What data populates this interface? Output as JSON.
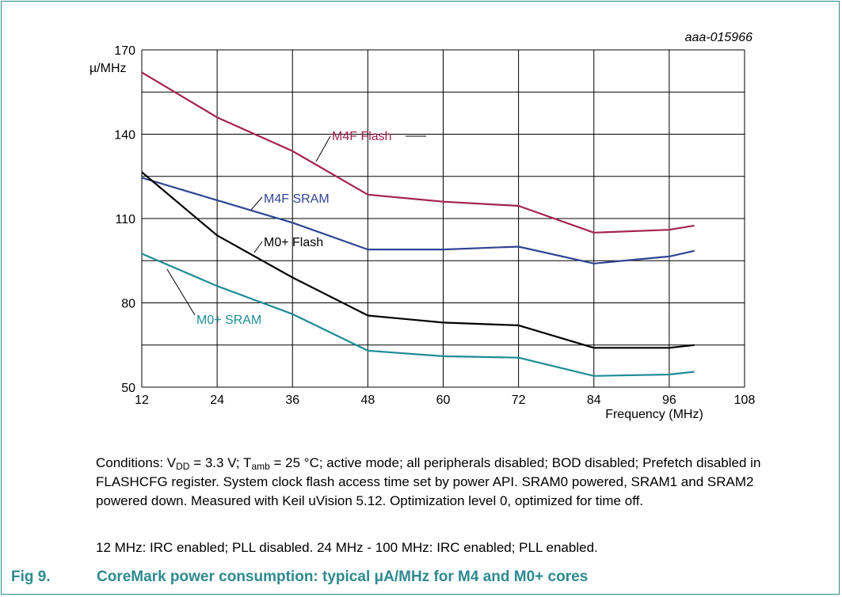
{
  "chart_data": {
    "type": "line",
    "doc_code": "aaa-015966",
    "xlabel": "Frequency (MHz)",
    "ylabel": "µ/MHz",
    "xlim": [
      12,
      108
    ],
    "ylim": [
      50,
      170
    ],
    "x_ticks": [
      12,
      24,
      36,
      48,
      60,
      72,
      84,
      96,
      108
    ],
    "y_ticks": [
      50,
      80,
      110,
      140,
      170
    ],
    "grid": true,
    "series": [
      {
        "name": "M4F Flash",
        "color": "#a3234f",
        "points": [
          [
            12,
            162
          ],
          [
            24,
            146
          ],
          [
            36,
            134
          ],
          [
            48,
            118.5
          ],
          [
            60,
            116
          ],
          [
            72,
            114.5
          ],
          [
            84,
            105
          ],
          [
            96,
            106
          ],
          [
            100,
            107.5
          ]
        ]
      },
      {
        "name": "M4F SRAM",
        "color": "#2f4592",
        "points": [
          [
            12,
            124.5
          ],
          [
            24,
            116.5
          ],
          [
            36,
            108.5
          ],
          [
            48,
            99
          ],
          [
            60,
            99
          ],
          [
            72,
            100
          ],
          [
            84,
            94
          ],
          [
            96,
            96.5
          ],
          [
            100,
            98.5
          ]
        ]
      },
      {
        "name": "M0+ Flash",
        "color": "#000000",
        "points": [
          [
            12,
            126.5
          ],
          [
            24,
            104
          ],
          [
            36,
            89
          ],
          [
            48,
            75.5
          ],
          [
            60,
            73
          ],
          [
            72,
            72
          ],
          [
            84,
            64
          ],
          [
            96,
            64
          ],
          [
            100,
            65
          ]
        ]
      },
      {
        "name": "M0+ SRAM",
        "color": "#1e8c96",
        "points": [
          [
            12,
            97.5
          ],
          [
            24,
            86
          ],
          [
            36,
            76
          ],
          [
            48,
            63
          ],
          [
            60,
            61
          ],
          [
            72,
            60.5
          ],
          [
            84,
            54
          ],
          [
            96,
            54.5
          ],
          [
            100,
            55.5
          ]
        ]
      }
    ],
    "annotations": [
      {
        "series": "M4F Flash",
        "text": "M4F Flash"
      },
      {
        "series": "M4F SRAM",
        "text": "M4F SRAM"
      },
      {
        "series": "M0+ Flash",
        "text": "M0+ Flash"
      },
      {
        "series": "M0+ SRAM",
        "text": "M0+ SRAM"
      }
    ]
  },
  "notes": {
    "cond_prefix": "Conditions: V",
    "cond_vdd_sub": "DD",
    "cond_vdd_value": " = 3.3 V; T",
    "cond_tamb_sub": "amb",
    "cond_rest": " = 25 °C; active mode; all peripherals disabled; BOD disabled; Prefetch disabled in FLASHCFG register. System clock flash access time set by power API. SRAM0 powered, SRAM1 and SRAM2 powered down. Measured with Keil uVision 5.12. Optimization level 0, optimized for time off.",
    "clock_note": "12 MHz: IRC enabled; PLL disabled. 24 MHz - 100 MHz: IRC enabled; PLL enabled."
  },
  "figure": {
    "label": "Fig 9.",
    "title": "CoreMark power consumption: typical μA/MHz for M4 and M0+ cores"
  }
}
